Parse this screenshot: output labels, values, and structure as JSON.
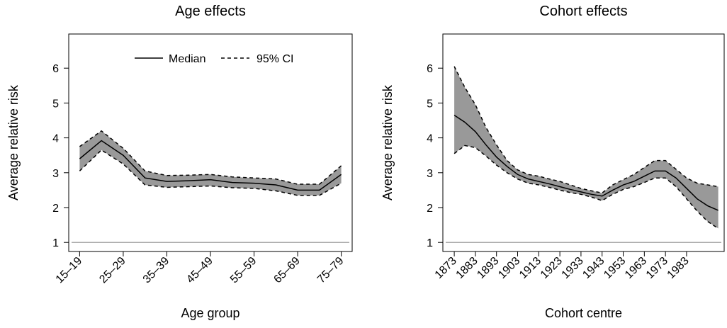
{
  "chart_data": [
    {
      "type": "line",
      "title": "Age effects",
      "xlabel": "Age group",
      "ylabel": "Average relative risk",
      "categories": [
        "15–19",
        null,
        "25–29",
        null,
        "35–39",
        null,
        "45–49",
        null,
        "55–59",
        null,
        "65–69",
        null,
        "75–79"
      ],
      "series": [
        {
          "name": "Median",
          "color": "#000000",
          "values": [
            3.4,
            3.92,
            3.5,
            2.85,
            2.75,
            2.77,
            2.8,
            2.72,
            2.7,
            2.65,
            2.5,
            2.5,
            2.95
          ]
        },
        {
          "name": "95% CI",
          "color": "#000000",
          "band_color": "#999999",
          "lower": [
            3.05,
            3.65,
            3.25,
            2.65,
            2.58,
            2.6,
            2.62,
            2.57,
            2.55,
            2.48,
            2.35,
            2.35,
            2.7
          ],
          "upper": [
            3.75,
            4.2,
            3.7,
            3.05,
            2.92,
            2.93,
            2.95,
            2.88,
            2.85,
            2.82,
            2.67,
            2.67,
            3.2
          ]
        }
      ],
      "hline": 1,
      "hline_color": "#aaaaaa",
      "ylim": [
        0.74,
        6.98
      ],
      "yticks": [
        1,
        2,
        3,
        4,
        5,
        6
      ],
      "legend": "top"
    },
    {
      "type": "line",
      "title": "Cohort effects",
      "xlabel": "Cohort centre",
      "ylabel": "Average relative risk",
      "x": [
        1873,
        1878,
        1883,
        1888,
        1893,
        1898,
        1903,
        1908,
        1913,
        1918,
        1923,
        1928,
        1933,
        1938,
        1943,
        1948,
        1953,
        1958,
        1963,
        1968,
        1973,
        1978,
        1983,
        1988,
        1993,
        1998
      ],
      "series": [
        {
          "color": "#000000",
          "values": [
            4.65,
            4.45,
            4.18,
            3.8,
            3.45,
            3.18,
            2.95,
            2.82,
            2.75,
            2.68,
            2.6,
            2.52,
            2.45,
            2.38,
            2.33,
            2.5,
            2.65,
            2.75,
            2.9,
            3.05,
            3.05,
            2.85,
            2.55,
            2.25,
            2.05,
            1.92
          ]
        },
        {
          "color": "#000000",
          "band_color": "#999999",
          "lower": [
            3.55,
            3.78,
            3.72,
            3.48,
            3.22,
            3.0,
            2.82,
            2.7,
            2.65,
            2.58,
            2.5,
            2.43,
            2.38,
            2.3,
            2.2,
            2.38,
            2.52,
            2.6,
            2.72,
            2.85,
            2.85,
            2.6,
            2.25,
            1.9,
            1.6,
            1.4
          ],
          "upper": [
            6.05,
            5.45,
            4.95,
            4.3,
            3.8,
            3.35,
            3.08,
            2.95,
            2.9,
            2.82,
            2.75,
            2.65,
            2.55,
            2.48,
            2.42,
            2.65,
            2.8,
            2.95,
            3.15,
            3.35,
            3.35,
            3.1,
            2.85,
            2.7,
            2.65,
            2.6
          ]
        }
      ],
      "hline": 1,
      "hline_color": "#aaaaaa",
      "xlim": [
        1867.6,
        2000.8
      ],
      "xticks": [
        1873,
        1883,
        1893,
        1903,
        1913,
        1923,
        1933,
        1943,
        1953,
        1963,
        1973,
        1983
      ],
      "ylim": [
        0.74,
        6.98
      ],
      "yticks": [
        1,
        2,
        3,
        4,
        5,
        6
      ]
    }
  ]
}
